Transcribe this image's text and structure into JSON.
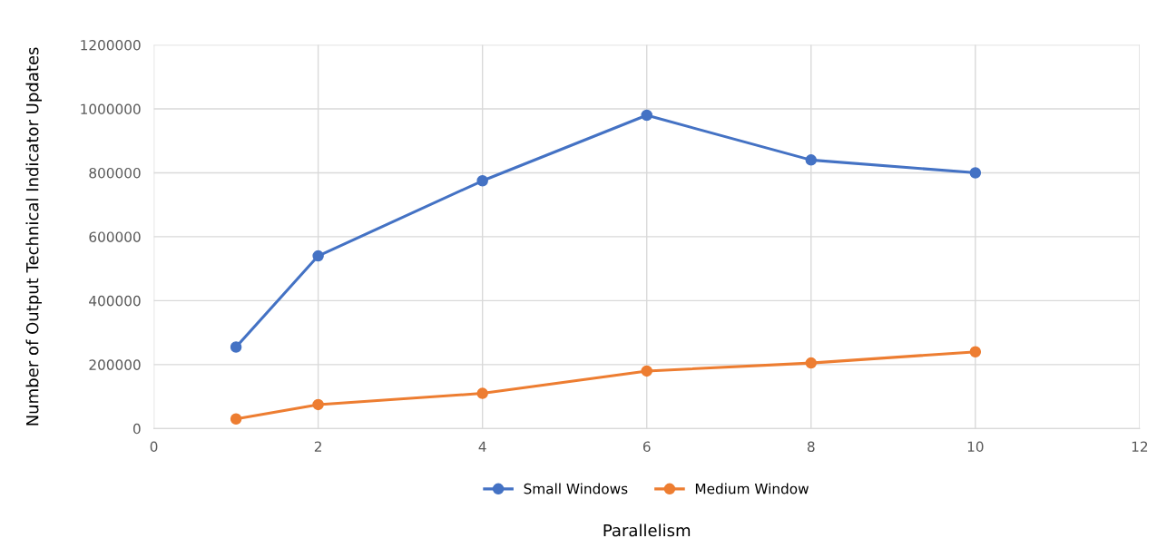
{
  "chart_data": {
    "type": "line",
    "xlabel": "Parallelism",
    "ylabel": "Number of Output Technical Indicator Updates",
    "x": [
      1,
      2,
      4,
      6,
      8,
      10
    ],
    "series": [
      {
        "name": "Small Windows",
        "color": "#4472c4",
        "values": [
          255000,
          540000,
          775000,
          980000,
          840000,
          800000
        ]
      },
      {
        "name": "Medium Window",
        "color": "#ed7d31",
        "values": [
          30000,
          75000,
          110000,
          180000,
          205000,
          240000
        ]
      }
    ],
    "xlim": [
      0,
      12
    ],
    "xticks": [
      0,
      2,
      4,
      6,
      8,
      10,
      12
    ],
    "ylim": [
      0,
      1200000
    ],
    "yticks": [
      0,
      200000,
      400000,
      600000,
      800000,
      1000000,
      1200000
    ],
    "grid": true,
    "legend": "bottom",
    "marker": "circle",
    "line_style": "solid"
  }
}
